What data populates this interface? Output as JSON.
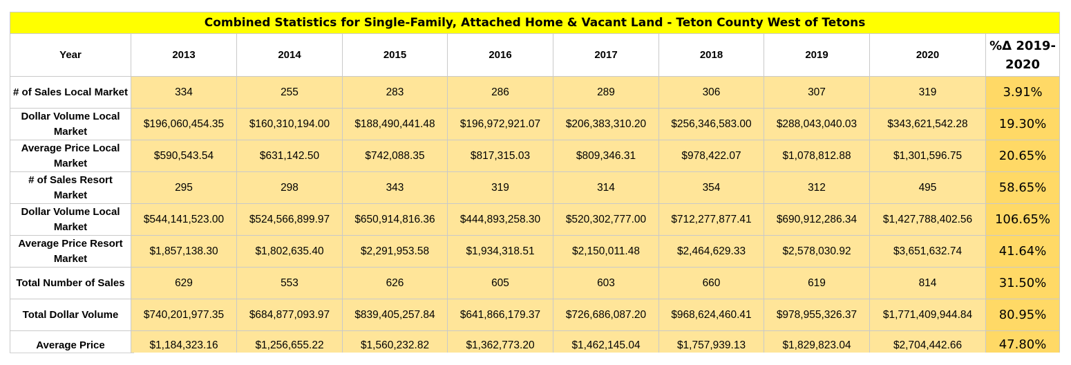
{
  "title": "Combined Statistics for Single-Family, Attached Home & Vacant Land - Teton County West of Tetons",
  "header": {
    "label": "Year",
    "years": [
      "2013",
      "2014",
      "2015",
      "2016",
      "2017",
      "2018",
      "2019",
      "2020"
    ],
    "pct_change": "%Δ 2019-2020"
  },
  "rows": [
    {
      "label": "# of Sales Local Market",
      "values": [
        "334",
        "255",
        "283",
        "286",
        "289",
        "306",
        "307",
        "319"
      ],
      "pct": "3.91%"
    },
    {
      "label": "Dollar Volume Local Market",
      "values": [
        "$196,060,454.35",
        "$160,310,194.00",
        "$188,490,441.48",
        "$196,972,921.07",
        "$206,383,310.20",
        "$256,346,583.00",
        "$288,043,040.03",
        "$343,621,542.28"
      ],
      "pct": "19.30%"
    },
    {
      "label": "Average Price Local Market",
      "values": [
        "$590,543.54",
        "$631,142.50",
        "$742,088.35",
        "$817,315.03",
        "$809,346.31",
        "$978,422.07",
        "$1,078,812.88",
        "$1,301,596.75"
      ],
      "pct": "20.65%"
    },
    {
      "label": "# of Sales Resort Market",
      "values": [
        "295",
        "298",
        "343",
        "319",
        "314",
        "354",
        "312",
        "495"
      ],
      "pct": "58.65%"
    },
    {
      "label": "Dollar Volume Local Market",
      "values": [
        "$544,141,523.00",
        "$524,566,899.97",
        "$650,914,816.36",
        "$444,893,258.30",
        "$520,302,777.00",
        "$712,277,877.41",
        "$690,912,286.34",
        "$1,427,788,402.56"
      ],
      "pct": "106.65%"
    },
    {
      "label": "Average Price Resort Market",
      "values": [
        "$1,857,138.30",
        "$1,802,635.40",
        "$2,291,953.58",
        "$1,934,318.51",
        "$2,150,011.48",
        "$2,464,629.33",
        "$2,578,030.92",
        "$3,651,632.74"
      ],
      "pct": "41.64%"
    },
    {
      "label": "Total Number of Sales",
      "values": [
        "629",
        "553",
        "626",
        "605",
        "603",
        "660",
        "619",
        "814"
      ],
      "pct": "31.50%"
    },
    {
      "label": "Total Dollar Volume",
      "values": [
        "$740,201,977.35",
        "$684,877,093.97",
        "$839,405,257.84",
        "$641,866,179.37",
        "$726,686,087.20",
        "$968,624,460.41",
        "$978,955,326.37",
        "$1,771,409,944.84"
      ],
      "pct": "80.95%"
    },
    {
      "label": "Average Price",
      "values": [
        "$1,184,323.16",
        "$1,256,655.22",
        "$1,560,232.82",
        "$1,362,773.20",
        "$1,462,145.04",
        "$1,757,939.13",
        "$1,829,823.04",
        "$2,704,442.66"
      ],
      "pct": "47.80%"
    }
  ]
}
